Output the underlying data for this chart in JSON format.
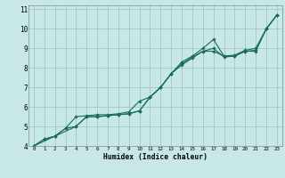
{
  "xlabel": "Humidex (Indice chaleur)",
  "xlim": [
    -0.5,
    23.5
  ],
  "ylim": [
    4,
    11.2
  ],
  "xticks": [
    0,
    1,
    2,
    3,
    4,
    5,
    6,
    7,
    8,
    9,
    10,
    11,
    12,
    13,
    14,
    15,
    16,
    17,
    18,
    19,
    20,
    21,
    22,
    23
  ],
  "yticks": [
    4,
    5,
    6,
    7,
    8,
    9,
    10,
    11
  ],
  "bg_color": "#c8e8e8",
  "grid_color": "#a0c8c8",
  "line_color": "#1a6b5a",
  "line1_x": [
    0,
    1,
    2,
    3,
    4,
    5,
    6,
    7,
    8,
    9,
    10,
    11,
    12,
    13,
    14,
    15,
    16,
    17,
    18,
    19,
    20,
    21,
    22,
    23
  ],
  "line1_y": [
    4.0,
    4.35,
    4.5,
    4.9,
    5.5,
    5.55,
    5.6,
    5.6,
    5.65,
    5.75,
    6.3,
    6.5,
    7.0,
    7.7,
    8.3,
    8.6,
    9.0,
    9.45,
    8.6,
    8.65,
    8.9,
    9.0,
    10.0,
    10.7
  ],
  "line2_x": [
    0,
    2,
    4,
    5,
    6,
    7,
    8,
    9,
    10,
    11,
    12,
    13,
    14,
    15,
    16,
    17,
    18,
    19,
    20,
    21,
    22,
    23
  ],
  "line2_y": [
    4.0,
    4.5,
    5.0,
    5.5,
    5.5,
    5.55,
    5.6,
    5.65,
    5.8,
    6.5,
    7.0,
    7.7,
    8.2,
    8.55,
    8.85,
    8.85,
    8.6,
    8.6,
    8.85,
    8.85,
    10.0,
    10.7
  ],
  "line3_x": [
    0,
    1,
    2,
    3,
    4,
    5,
    6,
    7,
    8,
    9,
    10,
    11,
    12,
    13,
    14,
    15,
    16,
    17,
    18,
    19,
    20,
    21,
    22,
    23
  ],
  "line3_y": [
    4.0,
    4.35,
    4.5,
    4.9,
    5.0,
    5.5,
    5.5,
    5.55,
    5.6,
    5.65,
    5.8,
    6.5,
    7.0,
    7.7,
    8.15,
    8.5,
    8.85,
    9.0,
    8.55,
    8.6,
    8.85,
    8.9,
    10.0,
    10.7
  ]
}
